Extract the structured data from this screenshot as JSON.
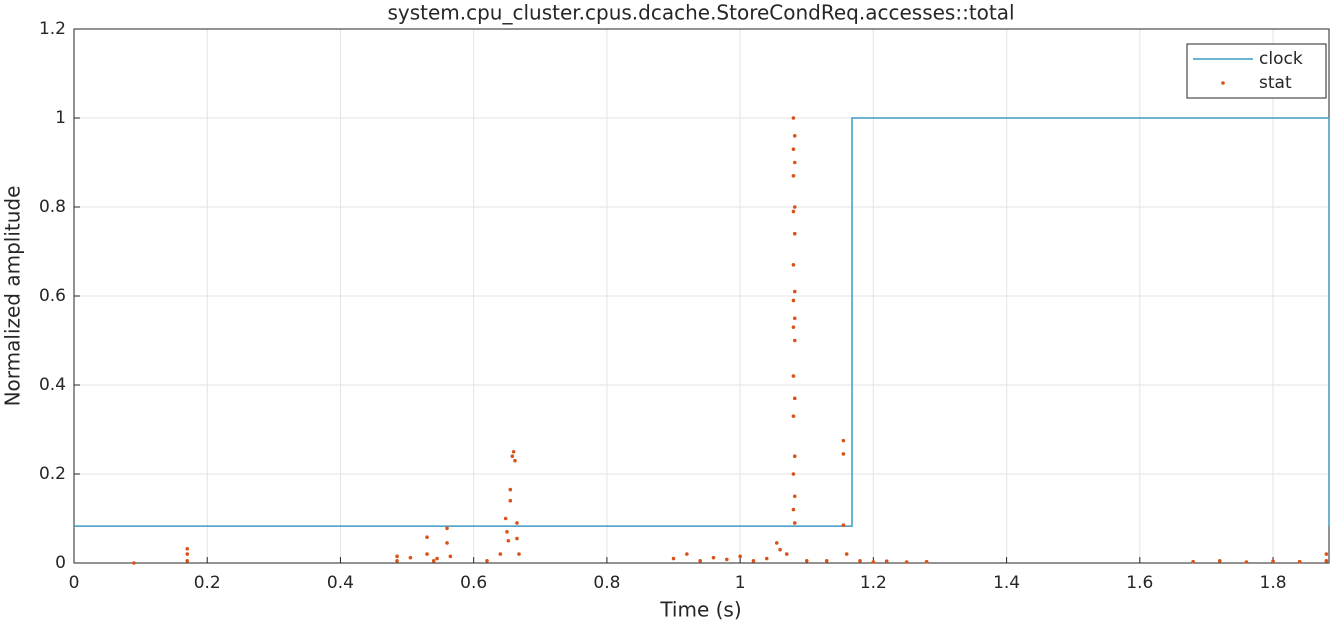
{
  "chart_data": {
    "type": "line-scatter",
    "title": "system.cpu_cluster.cpus.dcache.StoreCondReq.accesses::total",
    "xlabel": "Time (s)",
    "ylabel": "Normalized amplitude",
    "xlim": [
      0,
      1.884
    ],
    "ylim": [
      0,
      1.2
    ],
    "xticks": [
      0,
      0.2,
      0.4,
      0.6,
      0.8,
      1,
      1.2,
      1.4,
      1.6,
      1.8
    ],
    "yticks": [
      0,
      0.2,
      0.4,
      0.6,
      0.8,
      1,
      1.2
    ],
    "grid": true,
    "legend": "northeast",
    "series": [
      {
        "name": "clock",
        "kind": "line",
        "color": "#3d9bc2",
        "x": [
          0,
          1.168,
          1.168,
          1.884,
          1.884
        ],
        "values": [
          0.083,
          0.083,
          1,
          1,
          0.083
        ]
      },
      {
        "name": "stat",
        "kind": "scatter",
        "color": "#d95319",
        "x": [
          0.09,
          0.17,
          0.17,
          0.17,
          0.485,
          0.485,
          0.505,
          0.53,
          0.53,
          0.54,
          0.545,
          0.56,
          0.56,
          0.565,
          0.62,
          0.64,
          0.648,
          0.65,
          0.652,
          0.655,
          0.655,
          0.658,
          0.66,
          0.662,
          0.665,
          0.665,
          0.668,
          0.9,
          0.92,
          0.94,
          0.96,
          0.98,
          1.0,
          1.02,
          1.04,
          1.055,
          1.06,
          1.07,
          1.08,
          1.082,
          1.08,
          1.082,
          1.08,
          1.082,
          1.08,
          1.082,
          1.08,
          1.082,
          1.08,
          1.082,
          1.08,
          1.082,
          1.08,
          1.082,
          1.08,
          1.082,
          1.08,
          1.082,
          1.08,
          1.082,
          1.1,
          1.13,
          1.155,
          1.155,
          1.155,
          1.16,
          1.18,
          1.2,
          1.22,
          1.25,
          1.28,
          1.68,
          1.72,
          1.76,
          1.8,
          1.84,
          1.88,
          1.88
        ],
        "values": [
          0,
          0.032,
          0.02,
          0.005,
          0.015,
          0.005,
          0.012,
          0.058,
          0.02,
          0.005,
          0.01,
          0.078,
          0.045,
          0.015,
          0.005,
          0.02,
          0.1,
          0.07,
          0.05,
          0.14,
          0.165,
          0.24,
          0.25,
          0.23,
          0.09,
          0.055,
          0.02,
          0.01,
          0.02,
          0.005,
          0.012,
          0.008,
          0.015,
          0.005,
          0.01,
          0.045,
          0.03,
          0.02,
          1.0,
          0.96,
          0.93,
          0.9,
          0.87,
          0.8,
          0.79,
          0.74,
          0.67,
          0.61,
          0.59,
          0.55,
          0.53,
          0.5,
          0.42,
          0.37,
          0.33,
          0.24,
          0.2,
          0.15,
          0.12,
          0.09,
          0.005,
          0.005,
          0.275,
          0.245,
          0.085,
          0.02,
          0.005,
          0.002,
          0.004,
          0.002,
          0.003,
          0.003,
          0.005,
          0.002,
          0.004,
          0.003,
          0.02,
          0.005
        ]
      }
    ]
  }
}
